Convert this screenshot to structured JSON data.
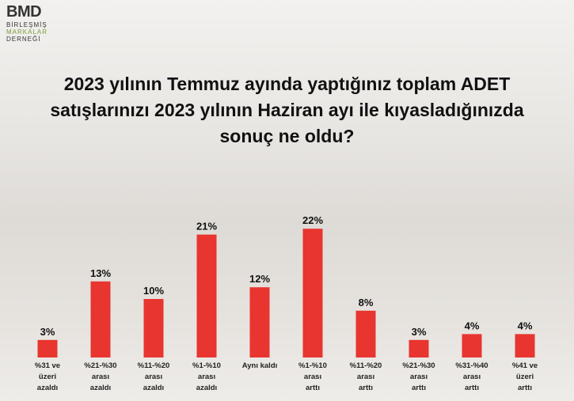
{
  "logo": {
    "name": "BMD",
    "lines": [
      "BİRLEŞMİŞ",
      "MARKALAR",
      "DERNEĞİ"
    ]
  },
  "chart_data": {
    "type": "bar",
    "title": "2023 yılının Temmuz ayında yaptığınız toplam ADET satışlarınızı 2023 yılının Haziran ayı ile kıyasladığınızda sonuç ne oldu?",
    "categories": [
      "%31 ve\nüzeri\nazaldı",
      "%21-%30\narası\nazaldı",
      "%11-%20\narası\nazaldı",
      "%1-%10\narası\nazaldı",
      "Aynı kaldı",
      "%1-%10\narası\narttı",
      "%11-%20\narası\narttı",
      "%21-%30\narası\narttı",
      "%31-%40\narası\narttı",
      "%41 ve\nüzeri\narttı"
    ],
    "values": [
      3,
      13,
      10,
      21,
      12,
      22,
      8,
      3,
      4,
      4
    ],
    "value_labels": [
      "3%",
      "13%",
      "10%",
      "21%",
      "12%",
      "22%",
      "8%",
      "3%",
      "4%",
      "4%"
    ],
    "color": "#e8352f"
  }
}
